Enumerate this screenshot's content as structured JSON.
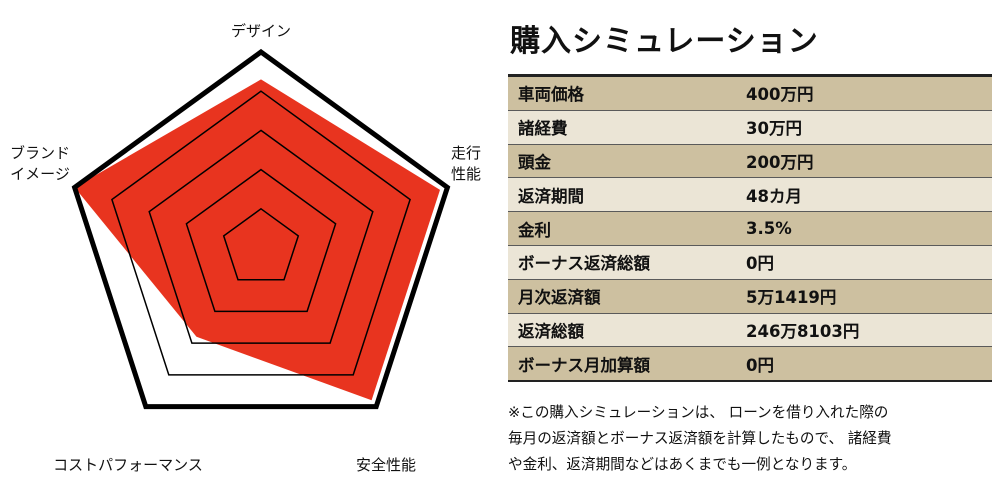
{
  "chart_data": {
    "type": "radar",
    "axes": [
      "デザイン",
      "走行性能",
      "安全性能",
      "コストパフォーマンス",
      "ブランドイメージ"
    ],
    "axis_labels_display": [
      [
        "デザイン"
      ],
      [
        "走行",
        "性能"
      ],
      [
        "安全性能"
      ],
      [
        "コストパフォーマンス"
      ],
      [
        "ブランド",
        "イメージ"
      ]
    ],
    "values": [
      4.3,
      4.8,
      4.8,
      2.8,
      5.0
    ],
    "scale_max": 5,
    "rings": [
      1,
      2,
      3,
      4,
      5
    ],
    "fill_color": "#e8341f",
    "line_color": "#000000"
  },
  "simulation": {
    "title": "購入シミュレーション",
    "rows": [
      {
        "label": "車両価格",
        "value": "400万円"
      },
      {
        "label": "諸経費",
        "value": "30万円"
      },
      {
        "label": "頭金",
        "value": "200万円"
      },
      {
        "label": "返済期間",
        "value": "48カ月"
      },
      {
        "label": "金利",
        "value": "3.5%"
      },
      {
        "label": "ボーナス返済総額",
        "value": "0円"
      },
      {
        "label": "月次返済額",
        "value": "5万1419円"
      },
      {
        "label": "返済総額",
        "value": "246万8103円"
      },
      {
        "label": "ボーナス月加算額",
        "value": "0円"
      }
    ],
    "note_lines": [
      "※この購入シミュレーションは、 ローンを借り入れた際の",
      "毎月の返済額とボーナス返済額を計算したもので、 諸経費",
      "や金利、返済期間などはあくまでも一例となります。"
    ],
    "row_colors": {
      "dark": "#cdc0a0",
      "light": "#ebe5d6"
    }
  }
}
